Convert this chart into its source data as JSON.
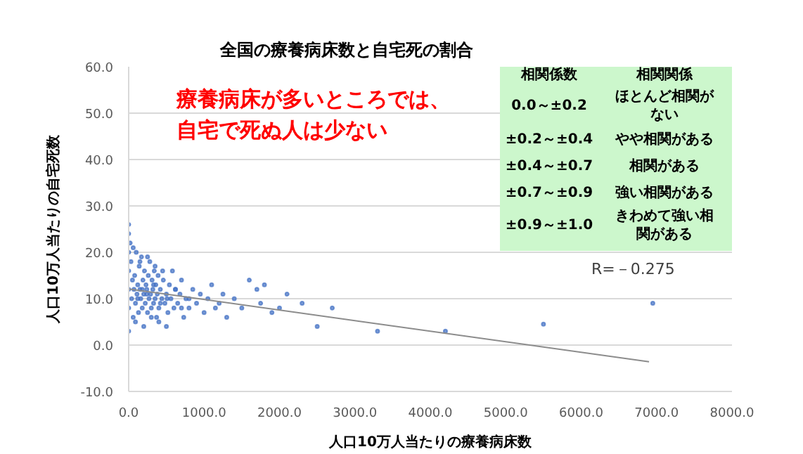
{
  "chart_data": {
    "type": "scatter",
    "title": "全国の療養病床数と自宅死の割合",
    "xlabel": "人口10万人当たりの療養病床数",
    "ylabel": "人口10万人当たりの自宅死数",
    "xlim": [
      0,
      8000
    ],
    "ylim": [
      -10,
      60
    ],
    "xticks": [
      {
        "value": 0,
        "label": "0.0"
      },
      {
        "value": 1000,
        "label": "1000.0"
      },
      {
        "value": 2000,
        "label": "2000.0"
      },
      {
        "value": 3000,
        "label": "3000.0"
      },
      {
        "value": 4000,
        "label": "4000.0"
      },
      {
        "value": 5000,
        "label": "5000.0"
      },
      {
        "value": 6000,
        "label": "6000.0"
      },
      {
        "value": 7000,
        "label": "7000.0"
      },
      {
        "value": 8000,
        "label": "8000.0"
      }
    ],
    "yticks": [
      {
        "value": -10,
        "label": "-10.0"
      },
      {
        "value": 0,
        "label": "0.0"
      },
      {
        "value": 10,
        "label": "10.0"
      },
      {
        "value": 20,
        "label": "20.0"
      },
      {
        "value": 30,
        "label": "30.0"
      },
      {
        "value": 40,
        "label": "40.0"
      },
      {
        "value": 50,
        "label": "50.0"
      },
      {
        "value": 60,
        "label": "60.0"
      }
    ],
    "grid": "y",
    "marker": "circle",
    "series": [
      {
        "color": "#4472c4",
        "x": [
          0,
          0,
          0,
          0,
          0,
          0,
          0,
          20,
          30,
          40,
          50,
          60,
          70,
          80,
          90,
          100,
          110,
          120,
          130,
          140,
          150,
          160,
          170,
          180,
          190,
          200,
          210,
          220,
          230,
          240,
          250,
          260,
          270,
          280,
          290,
          300,
          310,
          320,
          330,
          340,
          350,
          360,
          370,
          380,
          390,
          400,
          420,
          440,
          460,
          480,
          500,
          520,
          540,
          560,
          580,
          600,
          620,
          650,
          680,
          700,
          730,
          760,
          800,
          850,
          900,
          950,
          1000,
          1050,
          1100,
          1150,
          1200,
          1250,
          1300,
          1400,
          1500,
          1600,
          1700,
          1750,
          1800,
          1900,
          2000,
          2100,
          2300,
          2500,
          2700,
          3300,
          4200,
          5500,
          6950,
          60,
          90,
          150,
          200,
          250,
          300,
          350,
          400,
          450,
          500,
          120,
          180,
          240,
          330,
          420,
          510,
          620,
          700,
          800
        ],
        "values": [
          3,
          8,
          12,
          16,
          20,
          24,
          26,
          22,
          18,
          10,
          14,
          6,
          12,
          15,
          9,
          20,
          11,
          13,
          7,
          17,
          12,
          10,
          19,
          8,
          14,
          11,
          16,
          9,
          13,
          12,
          7,
          15,
          10,
          18,
          11,
          8,
          14,
          12,
          9,
          16,
          10,
          13,
          6,
          11,
          15,
          8,
          12,
          10,
          14,
          9,
          11,
          7,
          13,
          10,
          16,
          8,
          12,
          9,
          11,
          14,
          6,
          10,
          8,
          12,
          9,
          11,
          7,
          10,
          13,
          8,
          9,
          11,
          6,
          10,
          8,
          14,
          12,
          9,
          13,
          7,
          8,
          11,
          9,
          4,
          8,
          3,
          3,
          4.5,
          9,
          21,
          5,
          18,
          4,
          19,
          6,
          17,
          5,
          16,
          4,
          10,
          12,
          11,
          13,
          9,
          10,
          12,
          8,
          10
        ]
      },
      {
        "type": "line",
        "color": "#8c8c8c",
        "marker": "none",
        "x": [
          0,
          6900
        ],
        "values": [
          12.1,
          -3.6
        ]
      }
    ],
    "annotations": [
      "療養病床が多いところでは、自宅で死ぬ人は少ない",
      "R=－0.275",
      "相関係数",
      "相関関係",
      "0.0～±0.2",
      "ほとんど相関がない",
      "±0.2～±0.4",
      "やや相関がある",
      "±0.4～±0.7",
      "相関がある",
      "±0.7～±0.9",
      "強い相関がある",
      "±0.9～±1.0",
      "きわめて強い相関がある"
    ]
  }
}
